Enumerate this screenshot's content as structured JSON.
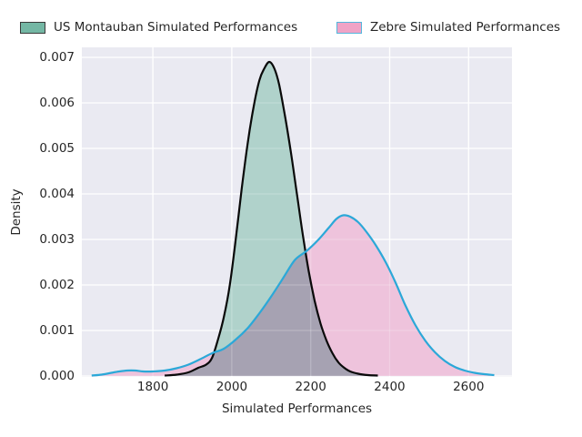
{
  "legend": {
    "items": [
      {
        "label": "US Montauban Simulated Performances",
        "fill": "#74b7a4",
        "border": "#3a3a3a"
      },
      {
        "label": "Zebre Simulated Performances",
        "fill": "#f0a3c6",
        "border": "#54b7dd"
      }
    ]
  },
  "axes": {
    "xlabel": "Simulated Performances",
    "ylabel": "Density"
  },
  "chart_data": {
    "type": "area",
    "subtype": "kde-density",
    "title": "",
    "xlabel": "Simulated Performances",
    "ylabel": "Density",
    "x_ticks": [
      1800,
      2000,
      2200,
      2400,
      2600
    ],
    "y_tick_labels": [
      "0.000",
      "0.001",
      "0.002",
      "0.003",
      "0.004",
      "0.005",
      "0.006",
      "0.007"
    ],
    "xlim": [
      1620,
      2710
    ],
    "ylim": [
      0,
      0.00722
    ],
    "grid": true,
    "plot_bg": "#eaeaf2",
    "grid_color": "#ffffff",
    "overlap_fill_color": "#a6a2b2",
    "legend_position": "top",
    "series": [
      {
        "name": "US Montauban Simulated Performances",
        "line_color": "#0a0a0a",
        "fill_color": "#b0d2cb",
        "peak": {
          "x": 2095,
          "density": 0.0069
        },
        "points": [
          [
            1830,
            1e-05
          ],
          [
            1860,
            3e-05
          ],
          [
            1890,
            8e-05
          ],
          [
            1915,
            0.00018
          ],
          [
            1935,
            0.00025
          ],
          [
            1950,
            0.0004
          ],
          [
            1965,
            0.0008
          ],
          [
            1980,
            0.0013
          ],
          [
            1995,
            0.002
          ],
          [
            2010,
            0.003
          ],
          [
            2025,
            0.0041
          ],
          [
            2040,
            0.0051
          ],
          [
            2055,
            0.0059
          ],
          [
            2070,
            0.0065
          ],
          [
            2082,
            0.00675
          ],
          [
            2095,
            0.0069
          ],
          [
            2108,
            0.00675
          ],
          [
            2120,
            0.0064
          ],
          [
            2135,
            0.0057
          ],
          [
            2150,
            0.0049
          ],
          [
            2165,
            0.004
          ],
          [
            2180,
            0.0031
          ],
          [
            2195,
            0.0023
          ],
          [
            2210,
            0.00165
          ],
          [
            2225,
            0.00115
          ],
          [
            2240,
            0.00078
          ],
          [
            2255,
            0.0005
          ],
          [
            2270,
            0.0003
          ],
          [
            2285,
            0.00018
          ],
          [
            2300,
            0.0001
          ],
          [
            2320,
            5e-05
          ],
          [
            2345,
            2e-05
          ],
          [
            2370,
            1e-05
          ]
        ]
      },
      {
        "name": "Zebre Simulated Performances",
        "line_color": "#2ba8d8",
        "fill_color": "#eec3dc",
        "peak": {
          "x": 2282,
          "density": 0.00353
        },
        "points": [
          [
            1645,
            1e-05
          ],
          [
            1670,
            3e-05
          ],
          [
            1695,
            7e-05
          ],
          [
            1715,
            0.0001
          ],
          [
            1735,
            0.00012
          ],
          [
            1755,
            0.00012
          ],
          [
            1775,
            0.0001
          ],
          [
            1800,
            0.0001
          ],
          [
            1830,
            0.00012
          ],
          [
            1860,
            0.00017
          ],
          [
            1890,
            0.00025
          ],
          [
            1920,
            0.00037
          ],
          [
            1950,
            0.0005
          ],
          [
            1980,
            0.0006
          ],
          [
            2010,
            0.0008
          ],
          [
            2040,
            0.00105
          ],
          [
            2070,
            0.00138
          ],
          [
            2100,
            0.00175
          ],
          [
            2130,
            0.00215
          ],
          [
            2160,
            0.00255
          ],
          [
            2190,
            0.00275
          ],
          [
            2220,
            0.003
          ],
          [
            2245,
            0.00325
          ],
          [
            2265,
            0.00345
          ],
          [
            2282,
            0.00353
          ],
          [
            2300,
            0.0035
          ],
          [
            2320,
            0.00338
          ],
          [
            2340,
            0.00318
          ],
          [
            2365,
            0.00287
          ],
          [
            2390,
            0.0025
          ],
          [
            2415,
            0.00205
          ],
          [
            2440,
            0.00155
          ],
          [
            2465,
            0.00112
          ],
          [
            2490,
            0.00078
          ],
          [
            2515,
            0.00052
          ],
          [
            2540,
            0.00033
          ],
          [
            2565,
            0.0002
          ],
          [
            2590,
            0.00012
          ],
          [
            2615,
            7e-05
          ],
          [
            2640,
            4e-05
          ],
          [
            2665,
            2e-05
          ]
        ]
      }
    ]
  }
}
